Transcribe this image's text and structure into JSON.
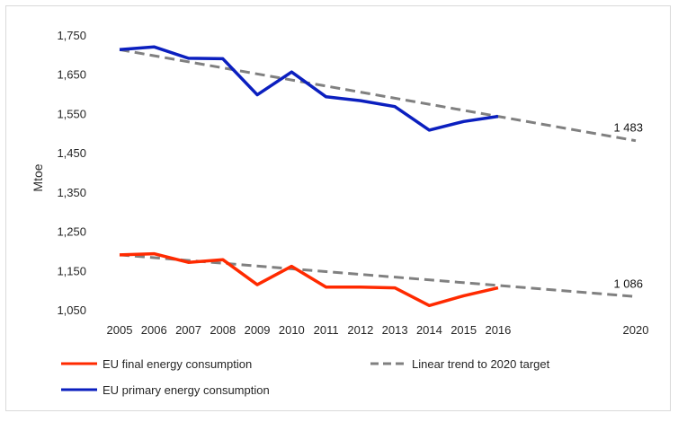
{
  "chart_data": {
    "type": "line",
    "ylabel": "Mtoe",
    "xlabel": "",
    "ylim": [
      1050,
      1750
    ],
    "yticks": [
      {
        "value": 1050,
        "label": "1,050"
      },
      {
        "value": 1150,
        "label": "1,150"
      },
      {
        "value": 1250,
        "label": "1,250"
      },
      {
        "value": 1350,
        "label": "1,350"
      },
      {
        "value": 1450,
        "label": "1,450"
      },
      {
        "value": 1550,
        "label": "1,550"
      },
      {
        "value": 1650,
        "label": "1,650"
      },
      {
        "value": 1750,
        "label": "1,750"
      }
    ],
    "xticks": [
      2005,
      2006,
      2007,
      2008,
      2009,
      2010,
      2011,
      2012,
      2013,
      2014,
      2015,
      2016,
      2020
    ],
    "grid": false,
    "legend_position": "bottom",
    "series": [
      {
        "name": "EU primary energy consumption",
        "color": "#0b1fbf",
        "style": "solid",
        "x": [
          2005,
          2006,
          2007,
          2008,
          2009,
          2010,
          2011,
          2012,
          2013,
          2014,
          2015,
          2016
        ],
        "y": [
          1715,
          1722,
          1693,
          1692,
          1600,
          1658,
          1595,
          1585,
          1570,
          1510,
          1532,
          1545
        ]
      },
      {
        "name": "EU final energy consumption",
        "color": "#ff2a00",
        "style": "solid",
        "x": [
          2005,
          2006,
          2007,
          2008,
          2009,
          2010,
          2011,
          2012,
          2013,
          2014,
          2015,
          2016
        ],
        "y": [
          1192,
          1195,
          1173,
          1180,
          1116,
          1163,
          1110,
          1110,
          1108,
          1063,
          1088,
          1108
        ]
      },
      {
        "name": "Linear trend to 2020 target",
        "color": "#808080",
        "style": "dashed",
        "x": [
          2005,
          2020
        ],
        "y": [
          1715,
          1483
        ]
      },
      {
        "name": "Linear trend to 2020 target",
        "color": "#808080",
        "style": "dashed",
        "legend": false,
        "x": [
          2005,
          2020
        ],
        "y": [
          1192,
          1086
        ]
      }
    ],
    "annotations": [
      {
        "text": "1 483",
        "x": 2020,
        "y": 1483
      },
      {
        "text": "1 086",
        "x": 2020,
        "y": 1086
      }
    ],
    "legend": [
      {
        "label": "EU final energy consumption",
        "color": "#ff2a00",
        "style": "solid"
      },
      {
        "label": "Linear trend to 2020 target",
        "color": "#808080",
        "style": "dashed"
      },
      {
        "label": "EU primary energy consumption",
        "color": "#0b1fbf",
        "style": "solid"
      }
    ]
  }
}
